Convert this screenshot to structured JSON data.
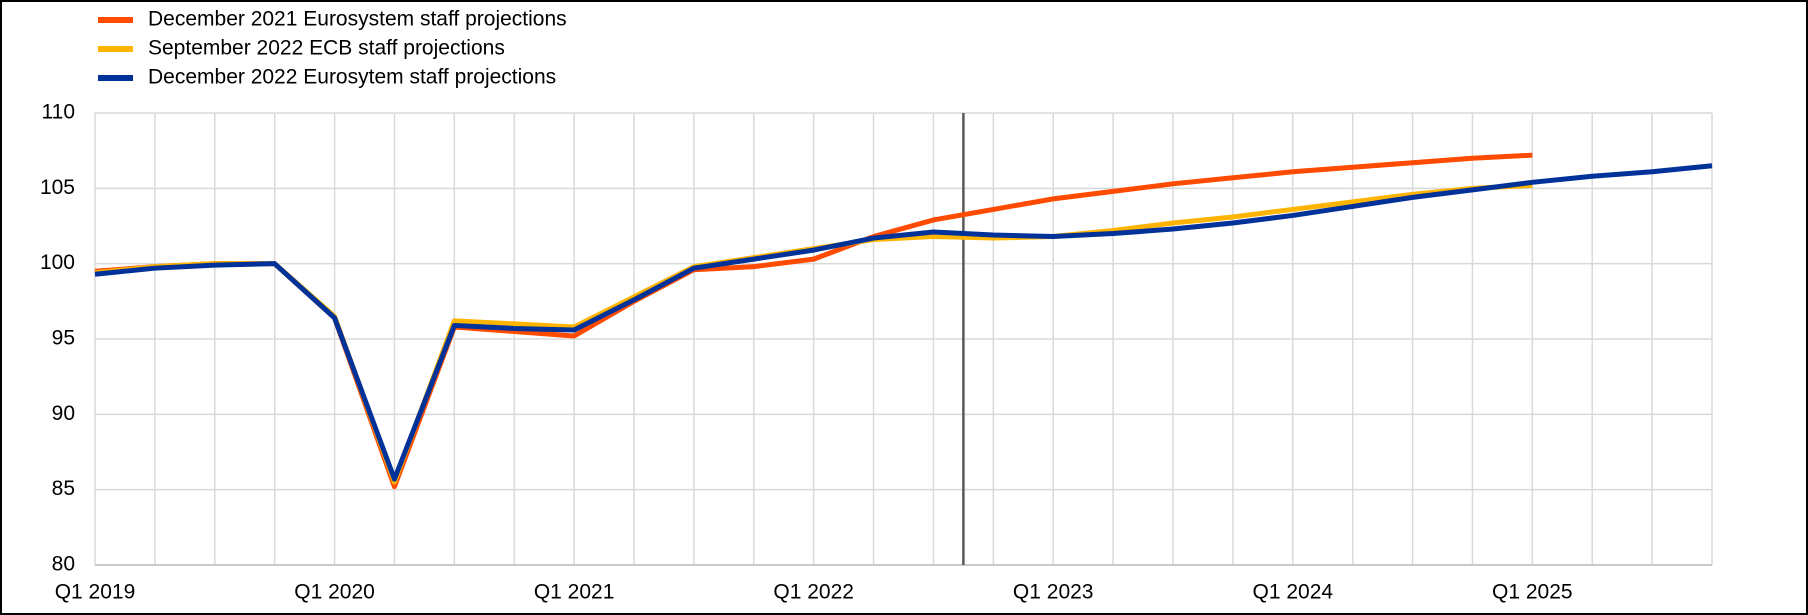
{
  "chart_data": {
    "type": "line",
    "categories": [
      "Q1 2019",
      null,
      null,
      null,
      "Q1 2020",
      null,
      null,
      null,
      "Q1 2021",
      null,
      null,
      null,
      "Q1 2022",
      null,
      null,
      null,
      "Q1 2023",
      null,
      null,
      null,
      "Q1 2024",
      null,
      null,
      null,
      "Q1 2025",
      null,
      null,
      null
    ],
    "series": [
      {
        "name": "December 2021 Eurosystem staff projections",
        "color": "#ff4b00",
        "values": [
          99.5,
          99.8,
          100.0,
          100.0,
          96.4,
          85.2,
          95.8,
          95.5,
          95.2,
          97.5,
          99.6,
          99.8,
          100.3,
          101.8,
          102.9,
          103.6,
          104.3,
          104.8,
          105.3,
          105.7,
          106.1,
          106.4,
          106.7,
          107.0,
          107.2,
          null,
          null,
          null
        ]
      },
      {
        "name": "September 2022 ECB staff projections",
        "color": "#ffb400",
        "values": [
          99.4,
          99.8,
          100.0,
          100.0,
          96.5,
          85.5,
          96.2,
          96.0,
          95.8,
          97.8,
          99.8,
          100.4,
          101.0,
          101.6,
          101.8,
          101.7,
          101.8,
          102.2,
          102.7,
          103.1,
          103.6,
          104.1,
          104.6,
          105.0,
          105.2,
          null,
          null,
          null
        ]
      },
      {
        "name": "December 2022 Eurosytem staff projections",
        "color": "#003299",
        "values": [
          99.3,
          99.7,
          99.9,
          100.0,
          96.4,
          85.7,
          95.9,
          95.7,
          95.6,
          97.6,
          99.7,
          100.3,
          100.9,
          101.7,
          102.1,
          101.9,
          101.8,
          102.0,
          102.3,
          102.7,
          103.2,
          103.8,
          104.4,
          104.9,
          105.4,
          105.8,
          106.1,
          106.5
        ]
      }
    ],
    "ylim": [
      80,
      110
    ],
    "yticks": [
      80,
      85,
      90,
      95,
      100,
      105,
      110
    ],
    "grid": true
  }
}
